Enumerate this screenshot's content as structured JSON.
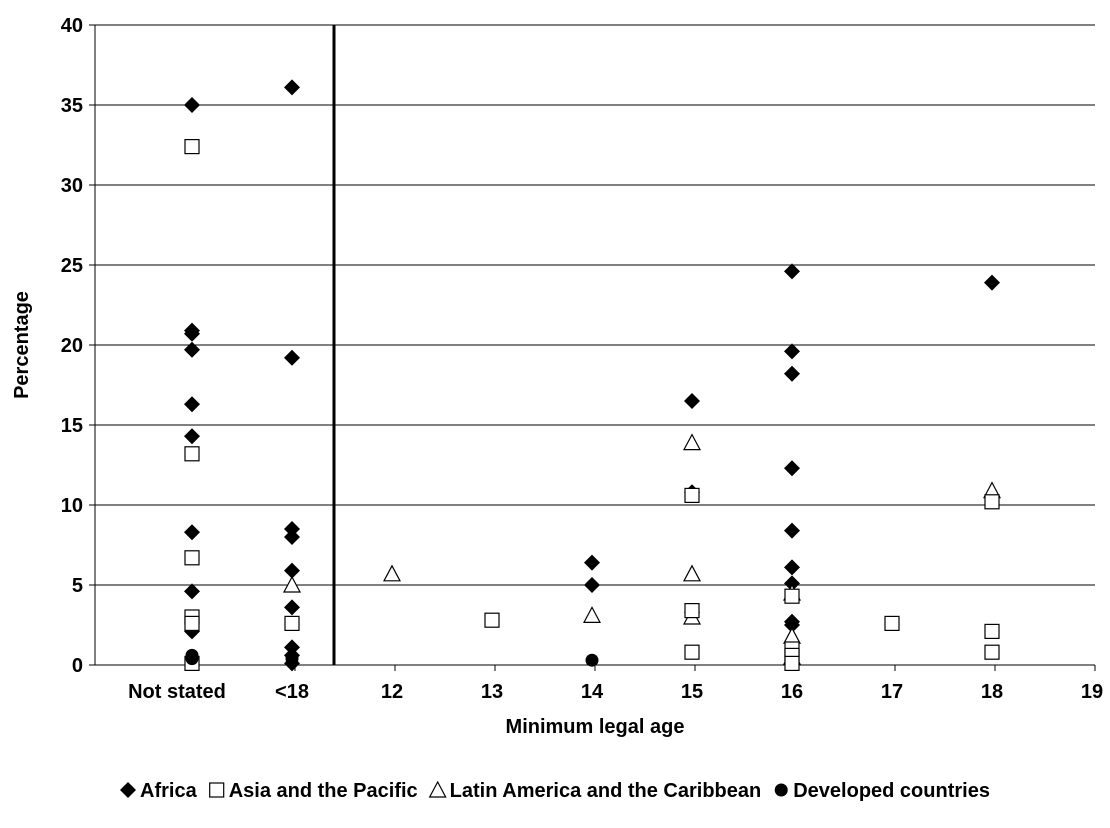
{
  "chart_data": {
    "type": "scatter",
    "xlabel": "Minimum legal age",
    "ylabel": "Percentage",
    "ylim": [
      0,
      40
    ],
    "yticks": [
      0,
      5,
      10,
      15,
      20,
      25,
      30,
      35,
      40
    ],
    "grid": true,
    "legend_position": "bottom",
    "x_categories": [
      "Not stated",
      "<18",
      "12",
      "13",
      "14",
      "15",
      "16",
      "17",
      "18",
      "19"
    ],
    "separator_after": "<18",
    "series": [
      {
        "name": "Africa",
        "marker": "diamond-filled",
        "points": [
          {
            "x": "Not stated",
            "y": 35.0
          },
          {
            "x": "Not stated",
            "y": 20.9
          },
          {
            "x": "Not stated",
            "y": 20.7
          },
          {
            "x": "Not stated",
            "y": 19.7
          },
          {
            "x": "Not stated",
            "y": 16.3
          },
          {
            "x": "Not stated",
            "y": 14.3
          },
          {
            "x": "Not stated",
            "y": 8.3
          },
          {
            "x": "Not stated",
            "y": 4.6
          },
          {
            "x": "Not stated",
            "y": 2.1
          },
          {
            "x": "<18",
            "y": 36.1
          },
          {
            "x": "<18",
            "y": 19.2
          },
          {
            "x": "<18",
            "y": 8.5
          },
          {
            "x": "<18",
            "y": 8.0
          },
          {
            "x": "<18",
            "y": 5.9
          },
          {
            "x": "<18",
            "y": 3.6
          },
          {
            "x": "<18",
            "y": 1.1
          },
          {
            "x": "<18",
            "y": 0.6
          },
          {
            "x": "<18",
            "y": 0.1
          },
          {
            "x": "14",
            "y": 6.4
          },
          {
            "x": "14",
            "y": 5.0
          },
          {
            "x": "15",
            "y": 16.5
          },
          {
            "x": "15",
            "y": 10.8
          },
          {
            "x": "15",
            "y": 3.3
          },
          {
            "x": "16",
            "y": 24.6
          },
          {
            "x": "16",
            "y": 19.6
          },
          {
            "x": "16",
            "y": 18.2
          },
          {
            "x": "16",
            "y": 12.3
          },
          {
            "x": "16",
            "y": 8.4
          },
          {
            "x": "16",
            "y": 6.1
          },
          {
            "x": "16",
            "y": 5.1
          },
          {
            "x": "16",
            "y": 2.7
          },
          {
            "x": "16",
            "y": 2.5
          },
          {
            "x": "18",
            "y": 23.9
          }
        ]
      },
      {
        "name": "Asia and the Pacific",
        "marker": "square-open",
        "points": [
          {
            "x": "Not stated",
            "y": 32.4
          },
          {
            "x": "Not stated",
            "y": 13.2
          },
          {
            "x": "Not stated",
            "y": 6.7
          },
          {
            "x": "Not stated",
            "y": 3.0
          },
          {
            "x": "Not stated",
            "y": 2.6
          },
          {
            "x": "Not stated",
            "y": 0.1
          },
          {
            "x": "<18",
            "y": 2.6
          },
          {
            "x": "13",
            "y": 2.8
          },
          {
            "x": "15",
            "y": 10.6
          },
          {
            "x": "15",
            "y": 3.4
          },
          {
            "x": "15",
            "y": 0.8
          },
          {
            "x": "16",
            "y": 4.3
          },
          {
            "x": "16",
            "y": 1.0
          },
          {
            "x": "16",
            "y": 0.6
          },
          {
            "x": "16",
            "y": 0.1
          },
          {
            "x": "17",
            "y": 2.6
          },
          {
            "x": "18",
            "y": 10.2
          },
          {
            "x": "18",
            "y": 2.1
          },
          {
            "x": "18",
            "y": 0.8
          }
        ]
      },
      {
        "name": "Latin America and the Caribbean",
        "marker": "triangle-open",
        "points": [
          {
            "x": "<18",
            "y": 5.0
          },
          {
            "x": "12",
            "y": 5.7
          },
          {
            "x": "14",
            "y": 3.1
          },
          {
            "x": "15",
            "y": 13.9
          },
          {
            "x": "15",
            "y": 5.7
          },
          {
            "x": "15",
            "y": 3.0
          },
          {
            "x": "16",
            "y": 4.5
          },
          {
            "x": "16",
            "y": 1.8
          },
          {
            "x": "16",
            "y": 0.5
          },
          {
            "x": "18",
            "y": 10.9
          }
        ]
      },
      {
        "name": "Developed countries",
        "marker": "circle-filled",
        "points": [
          {
            "x": "Not stated",
            "y": 0.6
          },
          {
            "x": "Not stated",
            "y": 0.4
          },
          {
            "x": "<18",
            "y": 0.4
          },
          {
            "x": "14",
            "y": 0.3
          }
        ]
      }
    ]
  }
}
